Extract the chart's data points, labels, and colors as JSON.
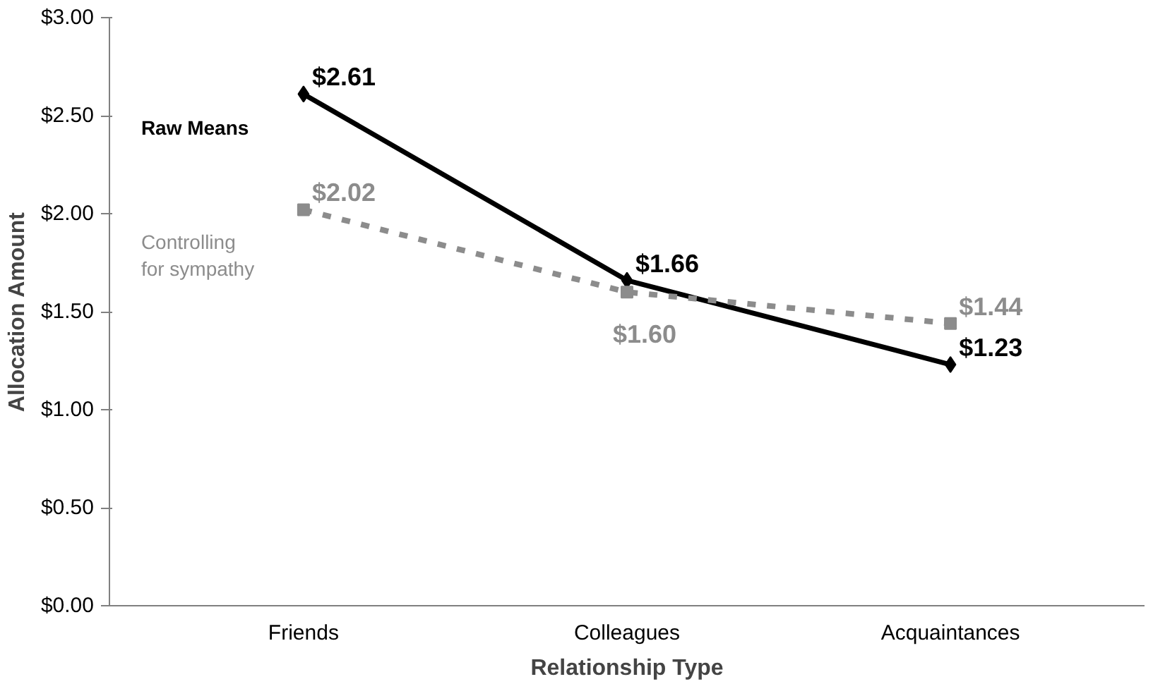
{
  "chart_data": {
    "type": "line",
    "xlabel": "Relationship Type",
    "ylabel": "Allocation Amount",
    "categories": [
      "Friends",
      "Colleagues",
      "Acquaintances"
    ],
    "series": [
      {
        "name": "Raw Means",
        "color": "#000000",
        "values": [
          2.61,
          1.66,
          1.23
        ],
        "value_labels": [
          "$2.61",
          "$1.66",
          "$1.23"
        ],
        "marker": "diamond",
        "line_style": "solid"
      },
      {
        "name": "Controlling for sympathy",
        "color": "#8c8c8c",
        "values": [
          2.02,
          1.6,
          1.44
        ],
        "value_labels": [
          "$2.02",
          "$1.60",
          "$1.44"
        ],
        "marker": "square",
        "line_style": "dashed"
      }
    ],
    "ylim": [
      0,
      3
    ],
    "yticks": [
      {
        "value": 0,
        "label": "$0.00"
      },
      {
        "value": 0.5,
        "label": "$0.50"
      },
      {
        "value": 1,
        "label": "$1.00"
      },
      {
        "value": 1.5,
        "label": "$1.50"
      },
      {
        "value": 2,
        "label": "$2.00"
      },
      {
        "value": 2.5,
        "label": "$2.50"
      },
      {
        "value": 3,
        "label": "$3.00"
      }
    ],
    "grid": false
  }
}
